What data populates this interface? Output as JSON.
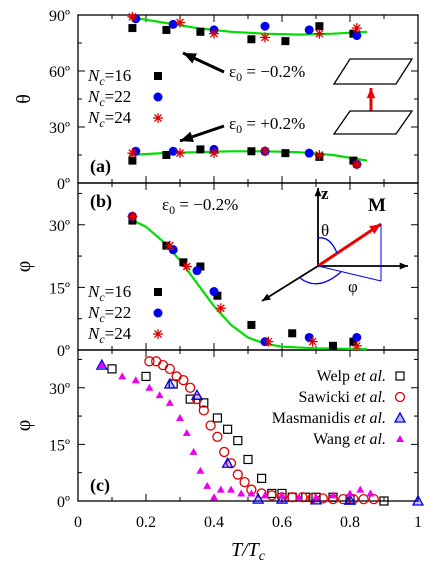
{
  "chart_data": [
    {
      "panel": "(a)",
      "type": "scatter",
      "ylabel": "θ",
      "ylim": [
        0,
        90
      ],
      "xlim": [
        0,
        1
      ],
      "yticks": [
        "0º",
        "30º",
        "60º",
        "90º"
      ],
      "annotations": [
        "ε0 = −0.2%",
        "ε0 = +0.2%"
      ],
      "series": [
        {
          "name": "Nc=16",
          "marker": "square",
          "color": "#000000",
          "strain_neg": {
            "x": [
              0.16,
              0.26,
              0.36,
              0.51,
              0.61,
              0.71,
              0.81
            ],
            "y": [
              83,
              82,
              81,
              77,
              76,
              84,
              80
            ]
          },
          "strain_pos": {
            "x": [
              0.16,
              0.26,
              0.36,
              0.51,
              0.61,
              0.71,
              0.81
            ],
            "y": [
              12,
              15,
              18,
              17,
              16,
              14,
              12
            ]
          }
        },
        {
          "name": "Nc=22",
          "marker": "circle",
          "color": "#0000ee",
          "strain_neg": {
            "x": [
              0.17,
              0.28,
              0.4,
              0.55,
              0.68,
              0.82
            ],
            "y": [
              88,
              85,
              82,
              84,
              82,
              79
            ]
          },
          "strain_pos": {
            "x": [
              0.17,
              0.28,
              0.4,
              0.55,
              0.68,
              0.82
            ],
            "y": [
              17,
              17,
              18,
              17,
              16,
              10
            ]
          }
        },
        {
          "name": "Nc=24",
          "marker": "asterisk",
          "color": "#dd0000",
          "strain_neg": {
            "x": [
              0.16,
              0.3,
              0.4,
              0.55,
              0.71,
              0.82
            ],
            "y": [
              89,
              86,
              80,
              78,
              80,
              83
            ]
          },
          "strain_pos": {
            "x": [
              0.16,
              0.3,
              0.4,
              0.55,
              0.71,
              0.82
            ],
            "y": [
              16,
              16,
              16,
              17,
              15,
              10
            ]
          }
        }
      ],
      "fits": {
        "color": "#00dd00",
        "neg": {
          "x": [
            0.15,
            0.25,
            0.35,
            0.45,
            0.55,
            0.65,
            0.75,
            0.85
          ],
          "y": [
            89,
            86,
            83,
            81,
            80,
            79.5,
            80,
            81
          ]
        },
        "pos": {
          "x": [
            0.15,
            0.25,
            0.35,
            0.45,
            0.55,
            0.65,
            0.75,
            0.85
          ],
          "y": [
            15,
            16,
            16.5,
            17,
            17,
            16.5,
            15,
            12
          ]
        }
      }
    },
    {
      "panel": "(b)",
      "type": "scatter",
      "ylabel": "φ",
      "ylim": [
        0,
        40
      ],
      "xlim": [
        0,
        1
      ],
      "yticks": [
        "0º",
        "15º",
        "30º"
      ],
      "annotations": [
        "ε0 = −0.2%"
      ],
      "series": [
        {
          "name": "Nc=16",
          "marker": "square",
          "color": "#000000",
          "x": [
            0.16,
            0.26,
            0.31,
            0.36,
            0.41,
            0.51,
            0.63,
            0.75,
            0.81
          ],
          "y": [
            31,
            25,
            21,
            20,
            13,
            6,
            4,
            1,
            2
          ]
        },
        {
          "name": "Nc=22",
          "marker": "circle",
          "color": "#0000ee",
          "x": [
            0.16,
            0.28,
            0.35,
            0.4,
            0.55,
            0.68,
            0.82
          ],
          "y": [
            32,
            24,
            19,
            14,
            2,
            3,
            3
          ]
        },
        {
          "name": "Nc=24",
          "marker": "asterisk",
          "color": "#dd0000",
          "x": [
            0.16,
            0.27,
            0.32,
            0.42,
            0.56,
            0.69,
            0.82
          ],
          "y": [
            32,
            25,
            20,
            10,
            2,
            2,
            1
          ]
        }
      ],
      "fit": {
        "color": "#00dd00",
        "x": [
          0.15,
          0.2,
          0.25,
          0.3,
          0.35,
          0.4,
          0.45,
          0.5,
          0.55,
          0.6,
          0.7,
          0.85
        ],
        "y": [
          31.5,
          29.5,
          26,
          21.5,
          16,
          10.5,
          6,
          3,
          1.5,
          0.8,
          0.4,
          0.2
        ]
      },
      "inset_labels": [
        "z",
        "M",
        "θ",
        "φ"
      ]
    },
    {
      "panel": "(c)",
      "type": "scatter",
      "ylabel": "φ",
      "xlabel": "T/Tc",
      "ylim": [
        0,
        40
      ],
      "xlim": [
        0,
        1
      ],
      "yticks": [
        "0º",
        "15º",
        "30º"
      ],
      "xticks": [
        "0",
        "0.2",
        "0.4",
        "0.6",
        "0.8",
        "1"
      ],
      "series": [
        {
          "name": "Welp et al.",
          "marker": "open-square",
          "color": "#000000",
          "x": [
            0.1,
            0.2,
            0.28,
            0.33,
            0.37,
            0.41,
            0.44,
            0.47,
            0.5,
            0.54,
            0.57,
            0.6,
            0.63,
            0.67,
            0.7,
            0.75,
            0.8,
            0.9
          ],
          "y": [
            35,
            33,
            31,
            27,
            26,
            22,
            19,
            16,
            11,
            6,
            2,
            2,
            1,
            1,
            1,
            1,
            0.5,
            0
          ]
        },
        {
          "name": "Sawicki et al.",
          "marker": "open-circle",
          "color": "#dd0000",
          "x": [
            0.21,
            0.23,
            0.25,
            0.27,
            0.29,
            0.31,
            0.33,
            0.35,
            0.37,
            0.39,
            0.41,
            0.43,
            0.45,
            0.47,
            0.49,
            0.51,
            0.54,
            0.57,
            0.6,
            0.63,
            0.66,
            0.69,
            0.72,
            0.75,
            0.78,
            0.81,
            0.84,
            0.87
          ],
          "y": [
            37,
            37,
            36,
            35,
            33,
            32,
            30,
            27,
            24,
            20,
            17,
            13,
            10,
            7,
            5,
            3,
            2,
            1.5,
            1,
            1,
            1,
            0.8,
            0.7,
            0.5,
            0.5,
            0.5,
            0.5,
            0.5
          ]
        },
        {
          "name": "Masmanidis et al.",
          "marker": "open-triangle",
          "color": "#0000ee",
          "x": [
            0.07,
            0.27,
            0.35,
            0.44,
            0.53,
            0.6,
            0.7,
            0.8,
            1.0
          ],
          "y": [
            36,
            31,
            28,
            10,
            0.5,
            0.5,
            0.3,
            0.2,
            0
          ]
        },
        {
          "name": "Wang et al.",
          "marker": "filled-triangle",
          "color": "#ee00ee",
          "x": [
            0.07,
            0.13,
            0.17,
            0.21,
            0.24,
            0.27,
            0.3,
            0.32,
            0.34,
            0.36,
            0.38,
            0.4,
            0.42,
            0.45,
            0.48,
            0.51,
            0.55,
            0.6,
            0.65,
            0.7,
            0.75,
            0.8,
            0.83,
            0.86
          ],
          "y": [
            36,
            33,
            32,
            30,
            28,
            26,
            22,
            18,
            13,
            8,
            4,
            1,
            3,
            3,
            2,
            2,
            1.5,
            1.5,
            1,
            1,
            1.5,
            2,
            3,
            2
          ]
        }
      ]
    }
  ],
  "legend_a": [
    {
      "label_pre": "N",
      "label_sub": "c",
      "label_post": "=16"
    },
    {
      "label_pre": "N",
      "label_sub": "c",
      "label_post": "=22"
    },
    {
      "label_pre": "N",
      "label_sub": "c",
      "label_post": "=24"
    }
  ],
  "legend_c": [
    "Welp et al.",
    "Sawicki et al.",
    "Masmanidis et al.",
    "Wang et al."
  ]
}
